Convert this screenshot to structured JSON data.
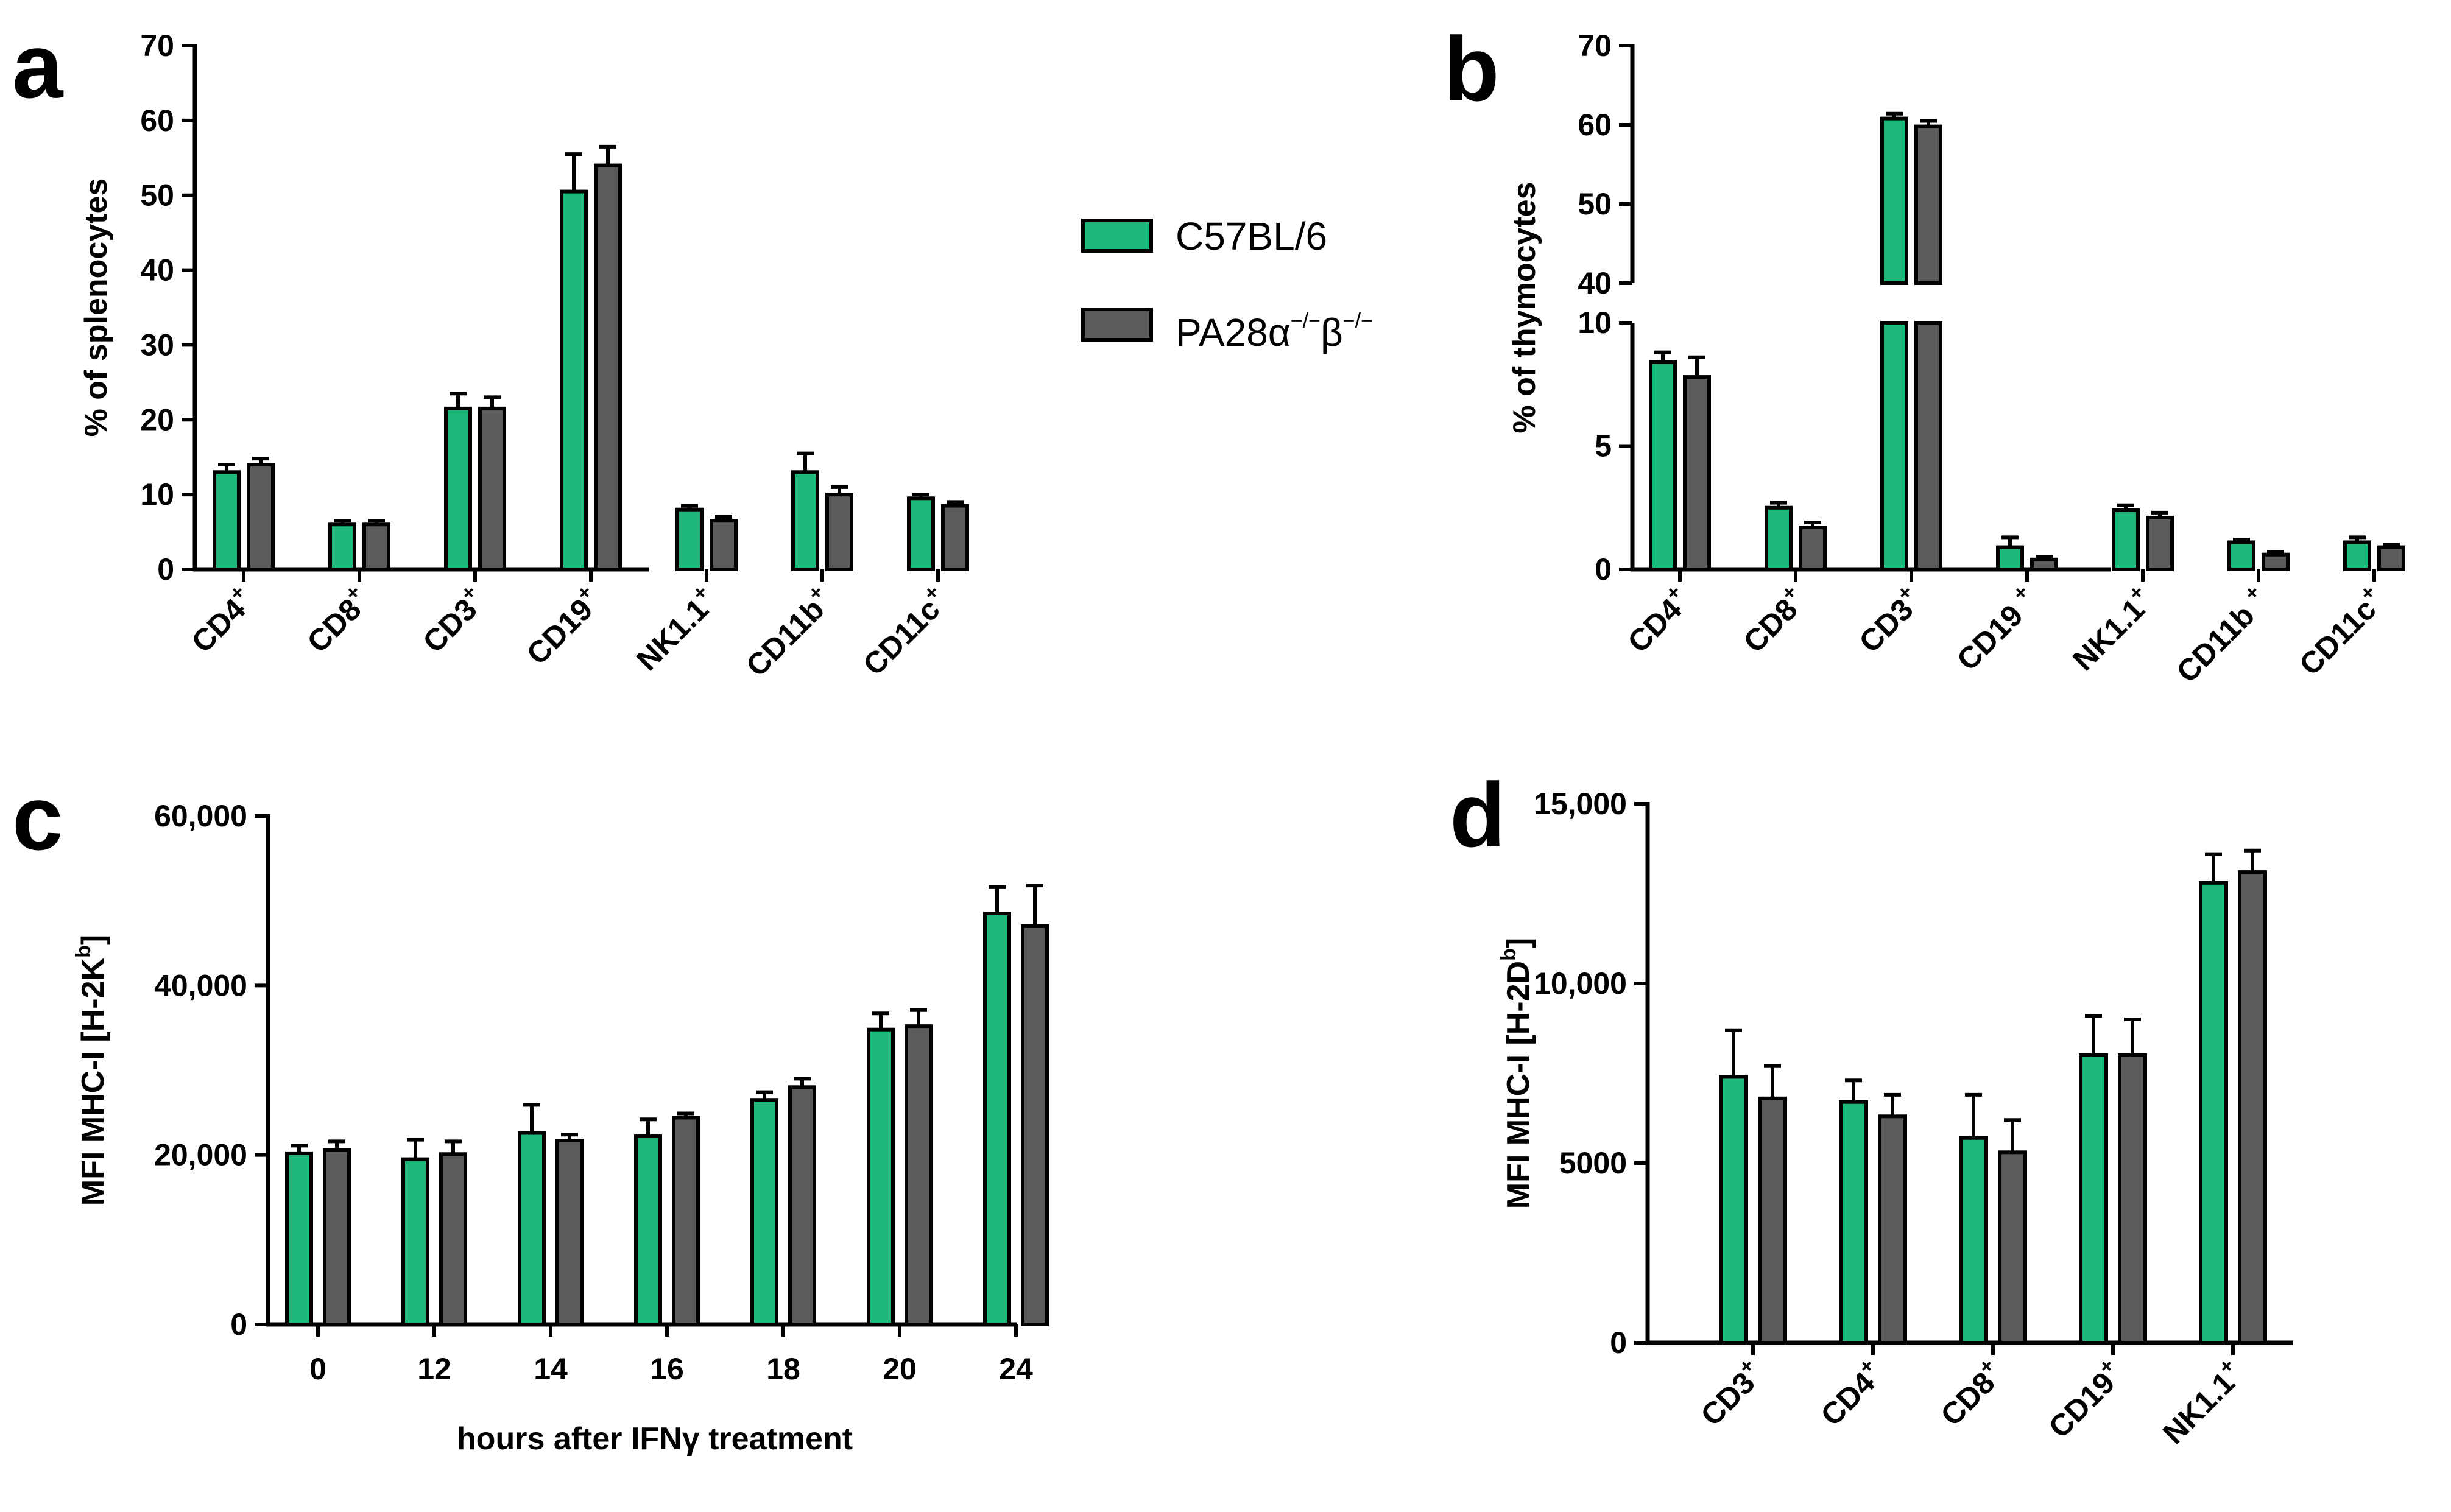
{
  "figure": {
    "colors": {
      "c57": "#1DB87A",
      "pa28": "#5B5B5B",
      "axis": "#000000"
    }
  },
  "legend": {
    "items": [
      {
        "label": "C57BL/6",
        "color": "#1DB87A"
      },
      {
        "label": "PA28α",
        "sup1": "−/−",
        "mid": "β",
        "sup2": "−/−",
        "color": "#5B5B5B"
      }
    ]
  },
  "chart_data": [
    {
      "panel": "a",
      "type": "bar",
      "ylabel": "% of splenocytes",
      "xlabel": "",
      "ylim": [
        0,
        70
      ],
      "yticks": [
        "0",
        "10",
        "20",
        "30",
        "40",
        "50",
        "60",
        "70"
      ],
      "categories": [
        {
          "base": "CD4",
          "sup": "+"
        },
        {
          "base": "CD8",
          "sup": "+"
        },
        {
          "base": "CD3",
          "sup": "+"
        },
        {
          "base": "CD19",
          "sup": "+"
        },
        {
          "base": "NK1.1",
          "sup": "+"
        },
        {
          "base": "CD11b",
          "sup": "+"
        },
        {
          "base": "CD11c",
          "sup": "+"
        }
      ],
      "series": [
        {
          "name": "C57BL/6",
          "values": [
            13,
            6,
            21.5,
            50.5,
            8,
            13,
            9.5
          ],
          "errors": [
            1,
            0.5,
            2,
            5,
            0.5,
            2.5,
            0.5
          ]
        },
        {
          "name": "PA28α−/−β−/−",
          "values": [
            14,
            6,
            21.5,
            54,
            6.5,
            10,
            8.5
          ],
          "errors": [
            0.8,
            0.5,
            1.5,
            2.5,
            0.5,
            1,
            0.5
          ]
        }
      ]
    },
    {
      "panel": "b",
      "type": "bar",
      "ylabel": "% of thymocytes",
      "xlabel": "",
      "ylim": [
        0,
        10
      ],
      "ylim_upper": [
        40,
        70
      ],
      "axis_break": true,
      "yticks": [
        "0",
        "5",
        "10"
      ],
      "yticks_upper": [
        "40",
        "50",
        "60",
        "70"
      ],
      "categories": [
        {
          "base": "CD4",
          "sup": "+"
        },
        {
          "base": "CD8",
          "sup": "+"
        },
        {
          "base": "CD3",
          "sup": "+"
        },
        {
          "base": "CD19 ",
          "sup": "+"
        },
        {
          "base": "NK1.1",
          "sup": "+"
        },
        {
          "base": "CD11b ",
          "sup": "+"
        },
        {
          "base": "CD11c",
          "sup": "+"
        }
      ],
      "series": [
        {
          "name": "C57BL/6",
          "values": [
            8.4,
            2.5,
            60.8,
            0.9,
            2.4,
            1.1,
            1.1
          ],
          "errors": [
            0.4,
            0.2,
            0.6,
            0.4,
            0.2,
            0.1,
            0.2
          ]
        },
        {
          "name": "PA28α−/−β−/−",
          "values": [
            7.8,
            1.7,
            59.8,
            0.4,
            2.1,
            0.6,
            0.9
          ],
          "errors": [
            0.8,
            0.2,
            0.7,
            0.1,
            0.2,
            0.1,
            0.1
          ]
        }
      ]
    },
    {
      "panel": "c",
      "type": "bar",
      "ylabel": "MFI MHC-I [H-2K",
      "ylabel_sup": "b",
      "ylabel_end": "]",
      "xlabel": "hours after IFNγ treatment",
      "ylim": [
        0,
        60000
      ],
      "yticks": [
        "0",
        "20,000",
        "40,000",
        "60,000"
      ],
      "categories": [
        {
          "base": "0",
          "sup": ""
        },
        {
          "base": "12",
          "sup": ""
        },
        {
          "base": "14",
          "sup": ""
        },
        {
          "base": "16",
          "sup": ""
        },
        {
          "base": "18",
          "sup": ""
        },
        {
          "base": "20",
          "sup": ""
        },
        {
          "base": "24",
          "sup": ""
        }
      ],
      "series": [
        {
          "name": "C57BL/6",
          "values": [
            20200,
            19500,
            22600,
            22200,
            26500,
            34800,
            48500
          ],
          "errors": [
            900,
            2300,
            3300,
            2000,
            900,
            1900,
            3100
          ]
        },
        {
          "name": "PA28α−/−β−/−",
          "values": [
            20600,
            20100,
            21700,
            24400,
            28000,
            35200,
            47000
          ],
          "errors": [
            1000,
            1500,
            700,
            500,
            1000,
            1900,
            4800
          ]
        }
      ]
    },
    {
      "panel": "d",
      "type": "bar",
      "ylabel": "MFI MHC-I [H-2D",
      "ylabel_sup": "b",
      "ylabel_end": "]",
      "xlabel": "",
      "ylim": [
        0,
        15000
      ],
      "yticks": [
        "0",
        "5000",
        "10,000",
        "15,000"
      ],
      "categories": [
        {
          "base": "CD3",
          "sup": "+"
        },
        {
          "base": "CD4",
          "sup": "+"
        },
        {
          "base": "CD8",
          "sup": "+"
        },
        {
          "base": "CD19",
          "sup": "+"
        },
        {
          "base": "NK1.1",
          "sup": "+"
        }
      ],
      "series": [
        {
          "name": "C57BL/6",
          "values": [
            7400,
            6700,
            5700,
            8000,
            12800
          ],
          "errors": [
            1300,
            600,
            1200,
            1100,
            800
          ]
        },
        {
          "name": "PA28α−/−β−/−",
          "values": [
            6800,
            6300,
            5300,
            8000,
            13100
          ],
          "errors": [
            900,
            600,
            900,
            1000,
            600
          ]
        }
      ]
    }
  ]
}
